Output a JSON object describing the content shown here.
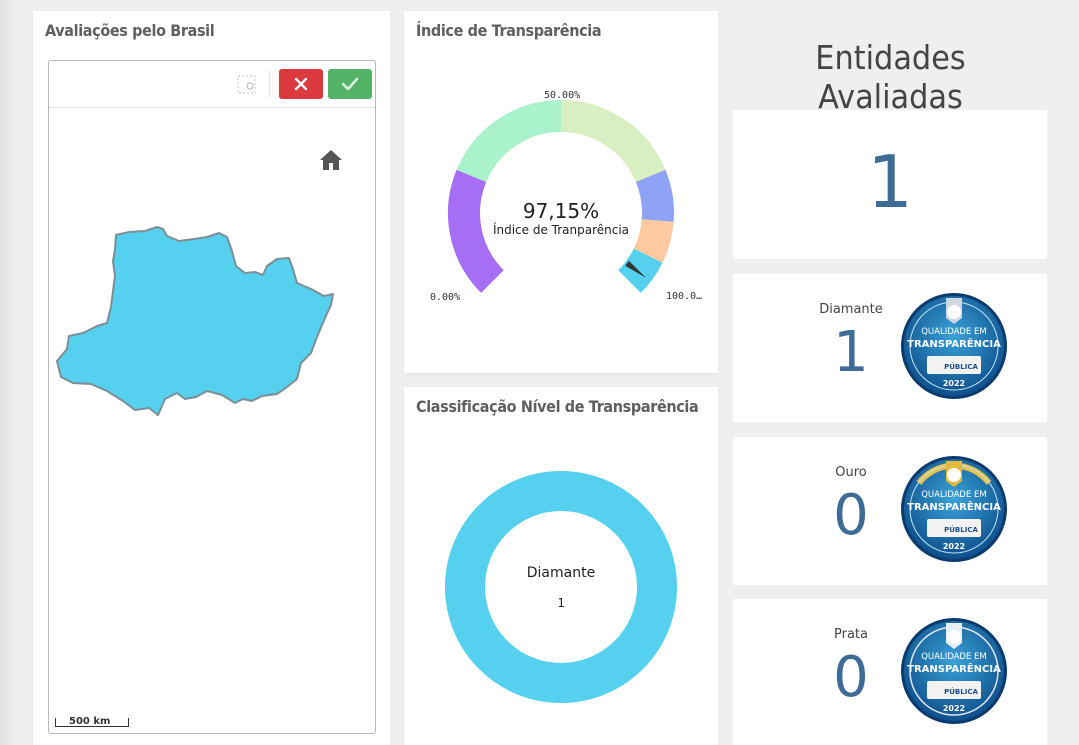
{
  "map_panel": {
    "title": "Avaliações pelo Brasil",
    "scale_label": "500 km",
    "region_color": "#55d0ee"
  },
  "gauge_panel": {
    "title": "Índice de Transparência",
    "value_text": "97,15%",
    "subtitle": "Índice de Tranparência",
    "tick_min": "0.00%",
    "tick_mid": "50.00%",
    "tick_max": "100.0…",
    "value": 97.15,
    "segment_colors": [
      "#a56ef5",
      "#a9f2cc",
      "#d8efc2",
      "#8ea3f5",
      "#fdc99e",
      "#55d0ee"
    ]
  },
  "donut_panel": {
    "title": "Classificação Nível de Transparência",
    "label": "Diamante",
    "count": "1",
    "color": "#55d0ee"
  },
  "entities": {
    "title": "Entidades Avaliadas",
    "total": "1",
    "levels": [
      {
        "name": "Diamante",
        "value": "1"
      },
      {
        "name": "Ouro",
        "value": "0"
      },
      {
        "name": "Prata",
        "value": "0"
      }
    ]
  },
  "badge": {
    "line1": "QUALIDADE EM",
    "line2": "TRANSPARÊNCIA",
    "year": "2022",
    "footer": "PÚBLICA"
  },
  "colors": {
    "accent_number": "#3f6b97",
    "cancel": "#d9393f",
    "confirm": "#52b265"
  }
}
